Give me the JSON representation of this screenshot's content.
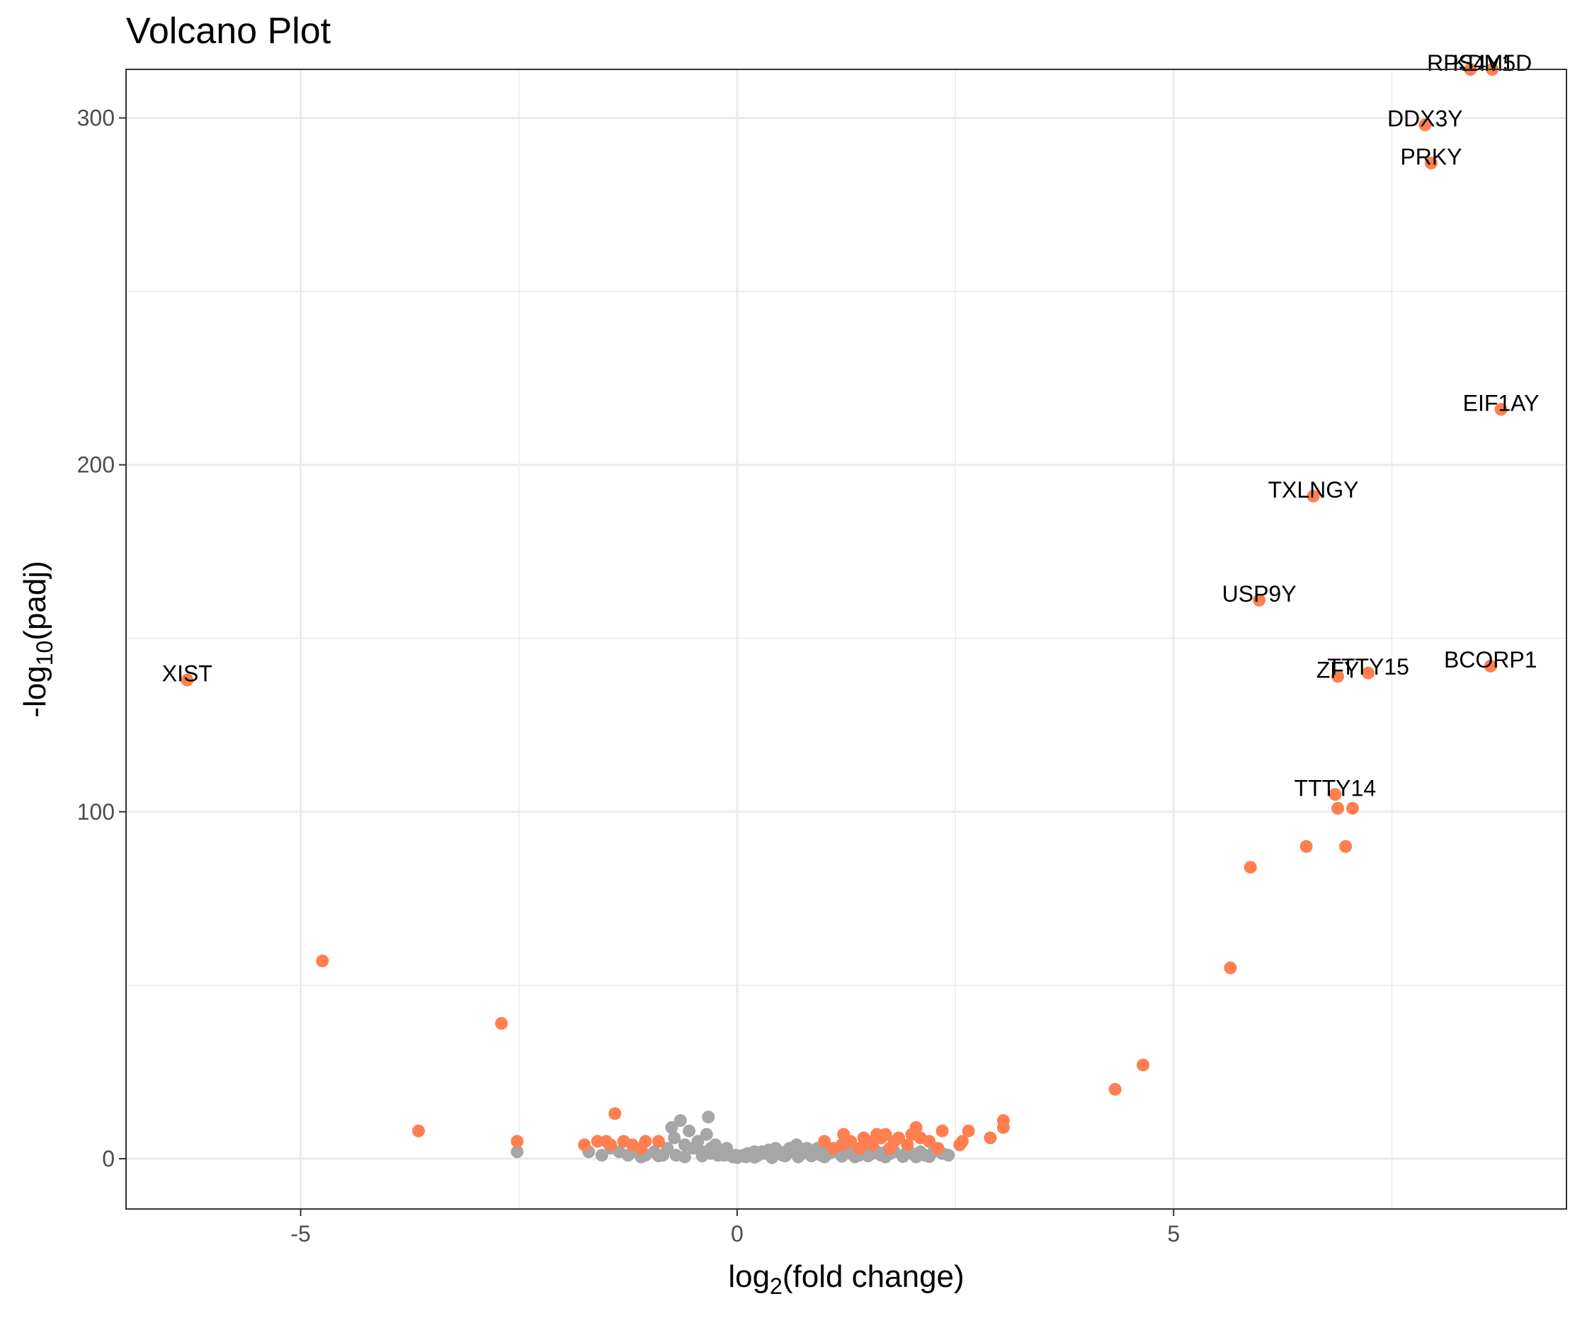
{
  "chart_data": {
    "type": "scatter",
    "title": "Volcano Plot",
    "xlabel": {
      "prefix": "log",
      "sub": "2",
      "suffix": "(fold change)"
    },
    "ylabel": {
      "prefix": "-log",
      "sub": "10",
      "suffix": "(padj)"
    },
    "xlim": [
      -7,
      9.5
    ],
    "ylim": [
      -14.5,
      314
    ],
    "x_ticks": [
      -5,
      0,
      5
    ],
    "x_tick_labels": [
      "-5",
      "0",
      "5"
    ],
    "y_ticks": [
      0,
      100,
      200,
      300
    ],
    "y_tick_labels": [
      "0",
      "100",
      "200",
      "300"
    ],
    "grid": true,
    "colors": {
      "significant": "#FF7F50",
      "not_significant": "#A6A6A6",
      "panel_border": "#333333",
      "grid": "#EBEBEB"
    },
    "labeled_points": [
      {
        "label": "RPS4Y1",
        "x": 8.4,
        "y": 315
      },
      {
        "label": "KDM5D",
        "x": 8.65,
        "y": 315
      },
      {
        "label": "DDX3Y",
        "x": 7.88,
        "y": 298
      },
      {
        "label": "PRKY",
        "x": 7.95,
        "y": 287
      },
      {
        "label": "EIF1AY",
        "x": 8.75,
        "y": 216
      },
      {
        "label": "TXLNGY",
        "x": 6.6,
        "y": 191
      },
      {
        "label": "USP9Y",
        "x": 5.98,
        "y": 161
      },
      {
        "label": "ZFY",
        "x": 6.88,
        "y": 139
      },
      {
        "label": "TTTY15",
        "x": 7.23,
        "y": 140
      },
      {
        "label": "BCORP1",
        "x": 8.63,
        "y": 142
      },
      {
        "label": "XIST",
        "x": -6.3,
        "y": 138
      },
      {
        "label": "TTTY14",
        "x": 6.85,
        "y": 105
      }
    ],
    "significant_points": [
      [
        -4.75,
        57
      ],
      [
        -3.65,
        8
      ],
      [
        -2.7,
        39
      ],
      [
        -2.52,
        5
      ],
      [
        -1.75,
        4
      ],
      [
        -1.4,
        13
      ],
      [
        -1.6,
        5
      ],
      [
        -1.5,
        5
      ],
      [
        -1.45,
        4
      ],
      [
        -1.3,
        5
      ],
      [
        -1.2,
        4
      ],
      [
        -1.05,
        5
      ],
      [
        -0.9,
        5
      ],
      [
        -1.1,
        3
      ],
      [
        6.88,
        101
      ],
      [
        7.05,
        101
      ],
      [
        6.52,
        90
      ],
      [
        6.97,
        90
      ],
      [
        5.88,
        84
      ],
      [
        5.65,
        55
      ],
      [
        4.65,
        27
      ],
      [
        4.33,
        20
      ],
      [
        3.05,
        11
      ],
      [
        3.05,
        9
      ],
      [
        2.9,
        6
      ],
      [
        2.65,
        8
      ],
      [
        2.55,
        4
      ],
      [
        2.35,
        8
      ],
      [
        2.2,
        5
      ],
      [
        2.1,
        6
      ],
      [
        2.05,
        9
      ],
      [
        2.0,
        7
      ],
      [
        1.95,
        4
      ],
      [
        1.85,
        6
      ],
      [
        1.8,
        5
      ],
      [
        1.7,
        7
      ],
      [
        1.65,
        6
      ],
      [
        1.6,
        7
      ],
      [
        1.55,
        4
      ],
      [
        1.5,
        5
      ],
      [
        1.4,
        3
      ],
      [
        1.3,
        5
      ],
      [
        1.2,
        4
      ],
      [
        1.22,
        7
      ],
      [
        1.1,
        3
      ],
      [
        1.0,
        5
      ],
      [
        1.45,
        6
      ],
      [
        1.75,
        3
      ],
      [
        2.3,
        3
      ],
      [
        2.58,
        5
      ]
    ],
    "nonsignificant_points": [
      [
        -2.52,
        2
      ],
      [
        -1.7,
        2
      ],
      [
        -1.55,
        1
      ],
      [
        -1.45,
        3
      ],
      [
        -1.35,
        2
      ],
      [
        -1.25,
        1
      ],
      [
        -1.15,
        2
      ],
      [
        -1.05,
        1
      ],
      [
        -0.95,
        2
      ],
      [
        -0.85,
        1
      ],
      [
        -0.8,
        3
      ],
      [
        -0.75,
        9
      ],
      [
        -0.72,
        6
      ],
      [
        -0.65,
        11
      ],
      [
        -0.6,
        4
      ],
      [
        -0.55,
        8
      ],
      [
        -0.5,
        3
      ],
      [
        -0.45,
        5
      ],
      [
        -0.4,
        2
      ],
      [
        -0.35,
        7
      ],
      [
        -0.33,
        12
      ],
      [
        -0.3,
        3
      ],
      [
        -0.25,
        4
      ],
      [
        -0.22,
        1
      ],
      [
        -0.18,
        2
      ],
      [
        -0.15,
        1
      ],
      [
        -0.12,
        3
      ],
      [
        -0.08,
        1
      ],
      [
        -0.05,
        0.5
      ],
      [
        -0.02,
        1
      ],
      [
        0.0,
        0.3
      ],
      [
        0.03,
        0.8
      ],
      [
        0.07,
        1
      ],
      [
        0.1,
        0.5
      ],
      [
        0.12,
        1.5
      ],
      [
        0.16,
        1
      ],
      [
        0.2,
        2
      ],
      [
        0.24,
        1
      ],
      [
        0.28,
        2
      ],
      [
        0.32,
        1.5
      ],
      [
        0.36,
        2.5
      ],
      [
        0.4,
        1
      ],
      [
        0.44,
        3
      ],
      [
        0.48,
        2
      ],
      [
        0.52,
        1
      ],
      [
        0.56,
        2
      ],
      [
        0.6,
        3
      ],
      [
        0.64,
        2
      ],
      [
        0.68,
        4
      ],
      [
        0.72,
        1
      ],
      [
        0.76,
        2
      ],
      [
        0.8,
        3
      ],
      [
        0.84,
        1.5
      ],
      [
        0.88,
        2
      ],
      [
        0.92,
        3
      ],
      [
        0.96,
        1
      ],
      [
        1.0,
        2
      ],
      [
        1.05,
        1.5
      ],
      [
        1.1,
        2
      ],
      [
        1.15,
        3
      ],
      [
        1.2,
        1
      ],
      [
        1.25,
        2
      ],
      [
        1.3,
        1.5
      ],
      [
        1.35,
        2
      ],
      [
        1.4,
        1
      ],
      [
        1.45,
        2
      ],
      [
        1.5,
        3
      ],
      [
        1.55,
        1.5
      ],
      [
        1.6,
        2
      ],
      [
        1.65,
        1
      ],
      [
        1.7,
        2
      ],
      [
        1.75,
        1.5
      ],
      [
        1.8,
        2
      ],
      [
        1.9,
        1
      ],
      [
        1.95,
        2
      ],
      [
        2.0,
        1.5
      ],
      [
        2.1,
        2
      ],
      [
        2.15,
        1
      ],
      [
        2.25,
        2
      ],
      [
        2.35,
        1.5
      ],
      [
        2.42,
        1
      ],
      [
        -1.1,
        0.5
      ],
      [
        -0.9,
        0.8
      ],
      [
        -0.7,
        1
      ],
      [
        -0.6,
        0.5
      ],
      [
        -0.4,
        0.8
      ],
      [
        -0.3,
        1.5
      ],
      [
        0.2,
        0.4
      ],
      [
        0.4,
        0.3
      ],
      [
        0.55,
        0.8
      ],
      [
        0.7,
        0.5
      ],
      [
        0.85,
        0.8
      ],
      [
        1.0,
        0.5
      ],
      [
        1.2,
        0.7
      ],
      [
        1.35,
        0.5
      ],
      [
        1.5,
        0.8
      ],
      [
        1.7,
        0.5
      ],
      [
        1.9,
        0.6
      ],
      [
        2.05,
        0.5
      ],
      [
        2.2,
        0.6
      ]
    ]
  }
}
